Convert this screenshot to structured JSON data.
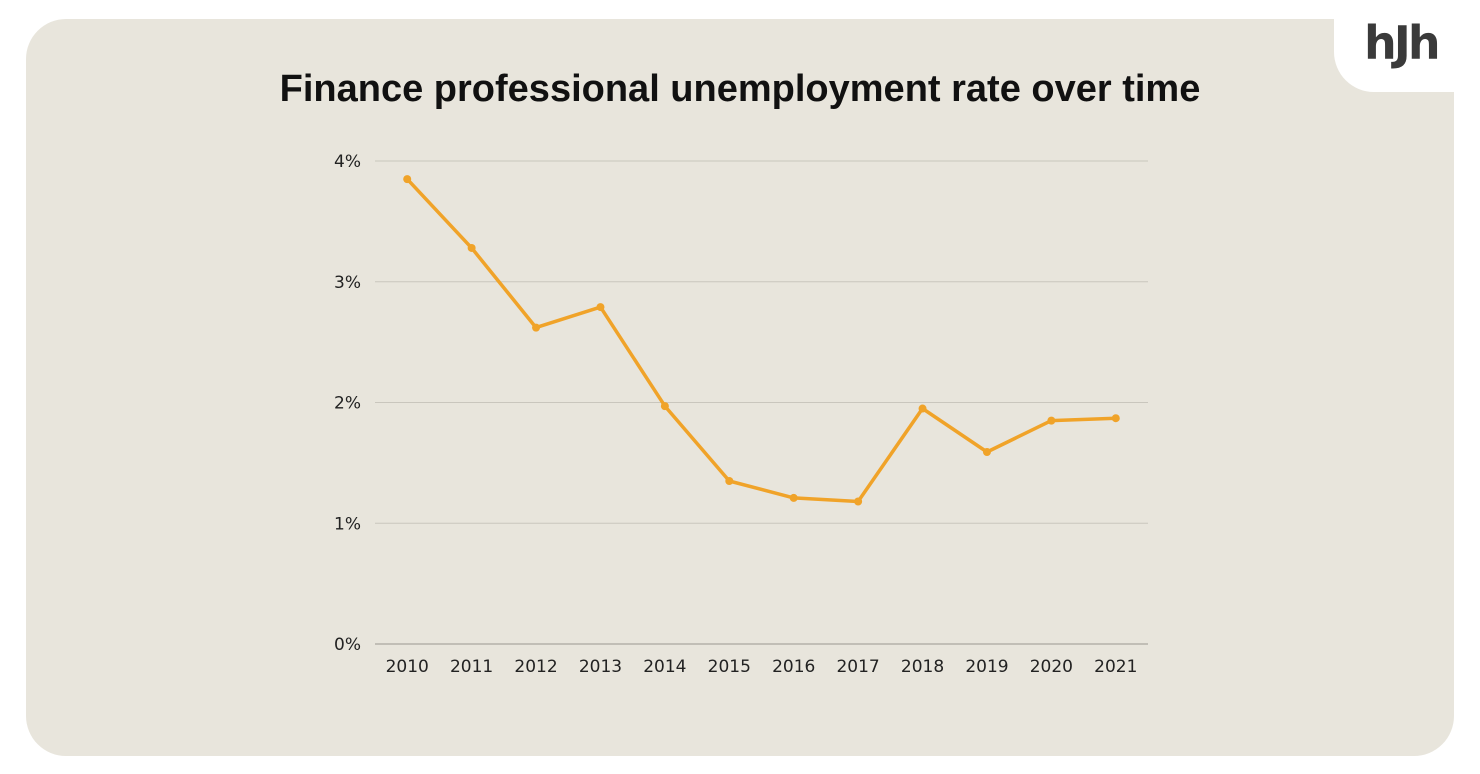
{
  "brand": {
    "logo_text": "hJh"
  },
  "chart_data": {
    "type": "line",
    "title": "Finance professional unemployment rate over time",
    "xlabel": "",
    "ylabel": "",
    "categories": [
      "2010",
      "2011",
      "2012",
      "2013",
      "2014",
      "2015",
      "2016",
      "2017",
      "2018",
      "2019",
      "2020",
      "2021"
    ],
    "series": [
      {
        "name": "Unemployment rate",
        "values": [
          3.85,
          3.28,
          2.62,
          2.79,
          1.97,
          1.35,
          1.21,
          1.18,
          1.95,
          1.59,
          1.85,
          1.87
        ]
      }
    ],
    "ylim": [
      0,
      4
    ],
    "yticks": [
      0,
      1,
      2,
      3,
      4
    ],
    "ytick_labels": [
      "0%",
      "1%",
      "2%",
      "3%",
      "4%"
    ],
    "grid": true,
    "legend": "none",
    "colors": {
      "line": "#f0a329",
      "grid": "#c9c6bd",
      "axis": "#9a978f"
    }
  }
}
